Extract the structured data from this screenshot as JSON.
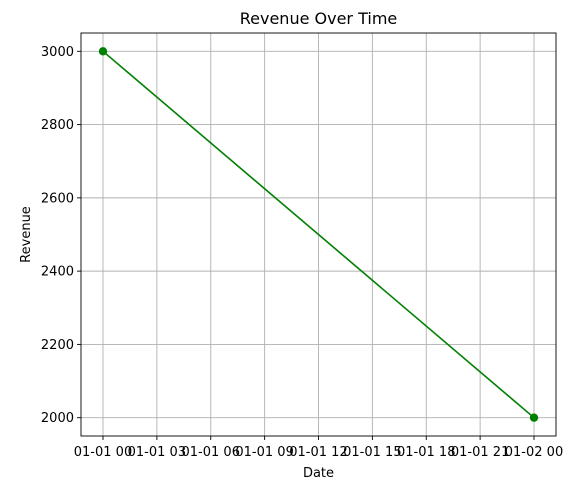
{
  "chart_data": {
    "type": "line",
    "title": "Revenue Over Time",
    "xlabel": "Date",
    "ylabel": "Revenue",
    "grid": true,
    "x_tick_labels": [
      "01-01 00",
      "01-01 03",
      "01-01 06",
      "01-01 09",
      "01-01 12",
      "01-01 15",
      "01-01 18",
      "01-01 21",
      "01-02 00"
    ],
    "y_ticks": [
      2000,
      2200,
      2400,
      2600,
      2800,
      3000
    ],
    "series": [
      {
        "color": "#008000",
        "marker": "circle",
        "points": [
          {
            "x": "01-01 00",
            "y": 3000
          },
          {
            "x": "01-02 00",
            "y": 2000
          }
        ]
      }
    ]
  }
}
